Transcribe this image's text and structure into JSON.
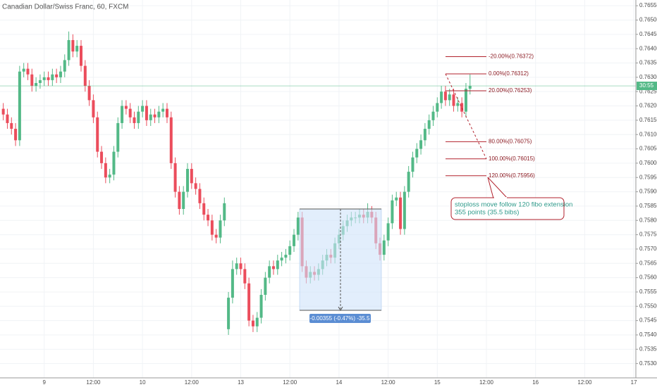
{
  "chart_data": {
    "type": "candlestick",
    "title": "Canadian Dollar/Swiss Franc, 60, FXCM",
    "up_color": "#53b987",
    "down_color": "#eb4d5c",
    "grid": true,
    "xlim": [
      -10.8,
      144.5
    ],
    "ylim": [
      0.7525,
      0.7657
    ],
    "xticks": [
      {
        "value": 0,
        "label": "9"
      },
      {
        "value": 12,
        "label": "12:00"
      },
      {
        "value": 24,
        "label": "10"
      },
      {
        "value": 36,
        "label": "12:00"
      },
      {
        "value": 48,
        "label": "13"
      },
      {
        "value": 60,
        "label": "12:00"
      },
      {
        "value": 72,
        "label": "14"
      },
      {
        "value": 84,
        "label": "12:00"
      },
      {
        "value": 96,
        "label": "15"
      },
      {
        "value": 108,
        "label": "12:00"
      },
      {
        "value": 120,
        "label": "16"
      },
      {
        "value": 132,
        "label": "12:00"
      },
      {
        "value": 144,
        "label": "17"
      }
    ],
    "yticks": [
      {
        "value": 0.753,
        "label": "0.75300"
      },
      {
        "value": 0.7535,
        "label": "0.75350"
      },
      {
        "value": 0.754,
        "label": "0.75400"
      },
      {
        "value": 0.7545,
        "label": "0.75450"
      },
      {
        "value": 0.755,
        "label": "0.75500"
      },
      {
        "value": 0.7555,
        "label": "0.75550"
      },
      {
        "value": 0.756,
        "label": "0.75600"
      },
      {
        "value": 0.7565,
        "label": "0.75650"
      },
      {
        "value": 0.757,
        "label": "0.75700"
      },
      {
        "value": 0.7575,
        "label": "0.75750"
      },
      {
        "value": 0.758,
        "label": "0.75800"
      },
      {
        "value": 0.7585,
        "label": "0.75850"
      },
      {
        "value": 0.759,
        "label": "0.75900"
      },
      {
        "value": 0.7595,
        "label": "0.75950"
      },
      {
        "value": 0.76,
        "label": "0.76000"
      },
      {
        "value": 0.7605,
        "label": "0.76050"
      },
      {
        "value": 0.761,
        "label": "0.76100"
      },
      {
        "value": 0.7615,
        "label": "0.76150"
      },
      {
        "value": 0.762,
        "label": "0.76200"
      },
      {
        "value": 0.7625,
        "label": "0.76250"
      },
      {
        "value": 0.763,
        "label": "0.76300"
      },
      {
        "value": 0.7635,
        "label": "0.76350"
      },
      {
        "value": 0.764,
        "label": "0.76400"
      },
      {
        "value": 0.7645,
        "label": "0.76450"
      },
      {
        "value": 0.765,
        "label": "0.76500"
      },
      {
        "value": 0.7655,
        "label": "0.76550"
      }
    ],
    "x": [
      -10,
      -9,
      -8,
      -7,
      -6,
      -5,
      -4,
      -3,
      -2,
      -1,
      0,
      1,
      2,
      3,
      4,
      5,
      6,
      7,
      8,
      9,
      10,
      11,
      12,
      13,
      14,
      15,
      16,
      17,
      18,
      19,
      20,
      21,
      22,
      23,
      24,
      25,
      26,
      27,
      28,
      29,
      30,
      31,
      32,
      33,
      34,
      35,
      36,
      37,
      38,
      39,
      40,
      41,
      42,
      43,
      44,
      45,
      46,
      47,
      48,
      49,
      50,
      51,
      52,
      53,
      54,
      55,
      56,
      57,
      58,
      59,
      60,
      61,
      62,
      63,
      64,
      65,
      66,
      67,
      68,
      69,
      70,
      71,
      72,
      73,
      74,
      75,
      76,
      77,
      78,
      79,
      80,
      81,
      82,
      83,
      84,
      85,
      86,
      87,
      88,
      89,
      90,
      91,
      92,
      93,
      94,
      95,
      96,
      97,
      98,
      99,
      100,
      101,
      102,
      103,
      104
    ],
    "open": [
      0.7619,
      0.7617,
      0.7614,
      0.7612,
      0.7608,
      0.7632,
      0.7633,
      0.7631,
      0.7627,
      0.7628,
      0.7629,
      0.763,
      0.7629,
      0.7631,
      0.763,
      0.7632,
      0.7636,
      0.7643,
      0.7639,
      0.7641,
      0.7634,
      0.7627,
      0.7622,
      0.7616,
      0.7604,
      0.76,
      0.7595,
      0.7596,
      0.7604,
      0.7614,
      0.762,
      0.7619,
      0.7616,
      0.7614,
      0.7618,
      0.762,
      0.7615,
      0.7617,
      0.7616,
      0.7618,
      0.7619,
      0.7616,
      0.76,
      0.759,
      0.7584,
      0.759,
      0.7598,
      0.7593,
      0.7591,
      0.7586,
      0.7582,
      0.758,
      0.7575,
      0.7574,
      0.758,
      0.7542,
      0.7553,
      0.7563,
      0.7565,
      0.7563,
      0.7558,
      0.7545,
      0.7543,
      0.7546,
      0.7554,
      0.756,
      0.7564,
      0.7563,
      0.7566,
      0.7567,
      0.7568,
      0.7571,
      0.7575,
      0.7581,
      0.7564,
      0.756,
      0.7562,
      0.7561,
      0.7563,
      0.7566,
      0.7568,
      0.7567,
      0.7572,
      0.7575,
      0.7578,
      0.758,
      0.7581,
      0.7581,
      0.7582,
      0.7581,
      0.7583,
      0.7581,
      0.7572,
      0.7568,
      0.7573,
      0.7579,
      0.7587,
      0.7588,
      0.7577,
      0.759,
      0.7597,
      0.7602,
      0.7605,
      0.7608,
      0.7612,
      0.7615,
      0.7618,
      0.7621,
      0.7625,
      0.7622,
      0.7624,
      0.762,
      0.7621,
      0.7618,
      0.7626
    ],
    "high": [
      0.7621,
      0.7619,
      0.7616,
      0.7614,
      0.7634,
      0.7635,
      0.7635,
      0.7633,
      0.763,
      0.7631,
      0.7632,
      0.7632,
      0.7633,
      0.7633,
      0.7634,
      0.7638,
      0.7646,
      0.7645,
      0.7643,
      0.7643,
      0.7636,
      0.7629,
      0.7624,
      0.7618,
      0.7606,
      0.7602,
      0.7598,
      0.7606,
      0.7616,
      0.7622,
      0.7622,
      0.7621,
      0.7618,
      0.762,
      0.7622,
      0.7622,
      0.7619,
      0.7619,
      0.762,
      0.7621,
      0.7621,
      0.7618,
      0.7602,
      0.7592,
      0.7592,
      0.76,
      0.76,
      0.7595,
      0.7593,
      0.7588,
      0.7584,
      0.7582,
      0.7577,
      0.7582,
      0.7588,
      0.7555,
      0.7566,
      0.7567,
      0.7567,
      0.7565,
      0.756,
      0.7547,
      0.7548,
      0.7556,
      0.7562,
      0.7566,
      0.7566,
      0.7568,
      0.7569,
      0.757,
      0.7573,
      0.7577,
      0.7583,
      0.7583,
      0.7566,
      0.7564,
      0.7564,
      0.7565,
      0.7568,
      0.757,
      0.757,
      0.7574,
      0.7577,
      0.758,
      0.7582,
      0.7583,
      0.7583,
      0.7584,
      0.7584,
      0.7586,
      0.7585,
      0.7583,
      0.7574,
      0.7575,
      0.7581,
      0.7589,
      0.759,
      0.759,
      0.7592,
      0.7599,
      0.7604,
      0.7607,
      0.761,
      0.7614,
      0.7617,
      0.762,
      0.7623,
      0.7627,
      0.7627,
      0.7626,
      0.7626,
      0.7623,
      0.7623,
      0.7628,
      0.7631
    ],
    "low": [
      0.7615,
      0.7612,
      0.761,
      0.7606,
      0.7606,
      0.763,
      0.7629,
      0.7625,
      0.7625,
      0.7626,
      0.7627,
      0.7627,
      0.7627,
      0.7628,
      0.7628,
      0.763,
      0.7634,
      0.7637,
      0.7637,
      0.7632,
      0.7625,
      0.762,
      0.7614,
      0.7602,
      0.7598,
      0.7593,
      0.7593,
      0.7594,
      0.7602,
      0.7612,
      0.7617,
      0.7614,
      0.7612,
      0.7612,
      0.7616,
      0.7613,
      0.7613,
      0.7614,
      0.7614,
      0.7616,
      0.7614,
      0.7598,
      0.7588,
      0.7582,
      0.7582,
      0.7588,
      0.7591,
      0.7589,
      0.7584,
      0.758,
      0.7578,
      0.7573,
      0.7572,
      0.7572,
      0.7578,
      0.754,
      0.7551,
      0.7561,
      0.7561,
      0.7556,
      0.7543,
      0.7541,
      0.7541,
      0.7544,
      0.7552,
      0.7558,
      0.7561,
      0.7561,
      0.7564,
      0.7565,
      0.7566,
      0.7569,
      0.7573,
      0.7562,
      0.7558,
      0.7558,
      0.7559,
      0.7559,
      0.7561,
      0.7564,
      0.7565,
      0.7565,
      0.757,
      0.7573,
      0.7576,
      0.7578,
      0.7579,
      0.7579,
      0.7579,
      0.7579,
      0.7579,
      0.757,
      0.7566,
      0.7566,
      0.7571,
      0.7577,
      0.7585,
      0.7575,
      0.7575,
      0.7588,
      0.7595,
      0.76,
      0.7603,
      0.7606,
      0.761,
      0.7613,
      0.7616,
      0.7619,
      0.762,
      0.762,
      0.7618,
      0.7618,
      0.7616,
      0.7616,
      0.7624
    ],
    "close": [
      0.7617,
      0.7614,
      0.7612,
      0.7608,
      0.7632,
      0.7633,
      0.7631,
      0.7627,
      0.7628,
      0.7629,
      0.763,
      0.7629,
      0.7631,
      0.763,
      0.7632,
      0.7636,
      0.7643,
      0.7639,
      0.7641,
      0.7634,
      0.7627,
      0.7622,
      0.7616,
      0.7604,
      0.76,
      0.7595,
      0.7596,
      0.7604,
      0.7614,
      0.762,
      0.7619,
      0.7616,
      0.7614,
      0.7618,
      0.762,
      0.7615,
      0.7617,
      0.7616,
      0.7618,
      0.7619,
      0.7616,
      0.76,
      0.759,
      0.7584,
      0.759,
      0.7598,
      0.7593,
      0.7591,
      0.7586,
      0.7582,
      0.758,
      0.7575,
      0.7574,
      0.758,
      0.7586,
      0.7553,
      0.7563,
      0.7565,
      0.7563,
      0.7558,
      0.7545,
      0.7543,
      0.7546,
      0.7554,
      0.756,
      0.7564,
      0.7563,
      0.7566,
      0.7567,
      0.7568,
      0.7571,
      0.7575,
      0.7581,
      0.7564,
      0.756,
      0.7562,
      0.7561,
      0.7563,
      0.7566,
      0.7568,
      0.7567,
      0.7572,
      0.7575,
      0.7578,
      0.758,
      0.7581,
      0.7581,
      0.7582,
      0.7581,
      0.7583,
      0.7581,
      0.7572,
      0.7568,
      0.7573,
      0.7579,
      0.7587,
      0.7588,
      0.7577,
      0.759,
      0.7597,
      0.7602,
      0.7605,
      0.7608,
      0.7612,
      0.7615,
      0.7618,
      0.7621,
      0.7625,
      0.7622,
      0.7624,
      0.762,
      0.7621,
      0.7618,
      0.7626,
      0.7627
    ],
    "price_line": {
      "value": 0.7627,
      "countdown": "30:55",
      "color": "#53b987"
    },
    "fib_levels": [
      {
        "value": 0.76372,
        "label": "-20.00%(0.76372)"
      },
      {
        "value": 0.76312,
        "label": "0.00%(0.76312)"
      },
      {
        "value": 0.76253,
        "label": "20.00%(0.76253)"
      },
      {
        "value": 0.76075,
        "label": "80.00%(0.76075)"
      },
      {
        "value": 0.76015,
        "label": "100.00%(0.76015)"
      },
      {
        "value": 0.75956,
        "label": "120.00%(0.75956)"
      }
    ],
    "fib_color": "#b2222d",
    "measure_label": "-0.00355 (-0.47%) -35.5",
    "callout": [
      "stoploss move follow 120 fibo extension",
      "355 points (35.5 bibs)"
    ]
  }
}
